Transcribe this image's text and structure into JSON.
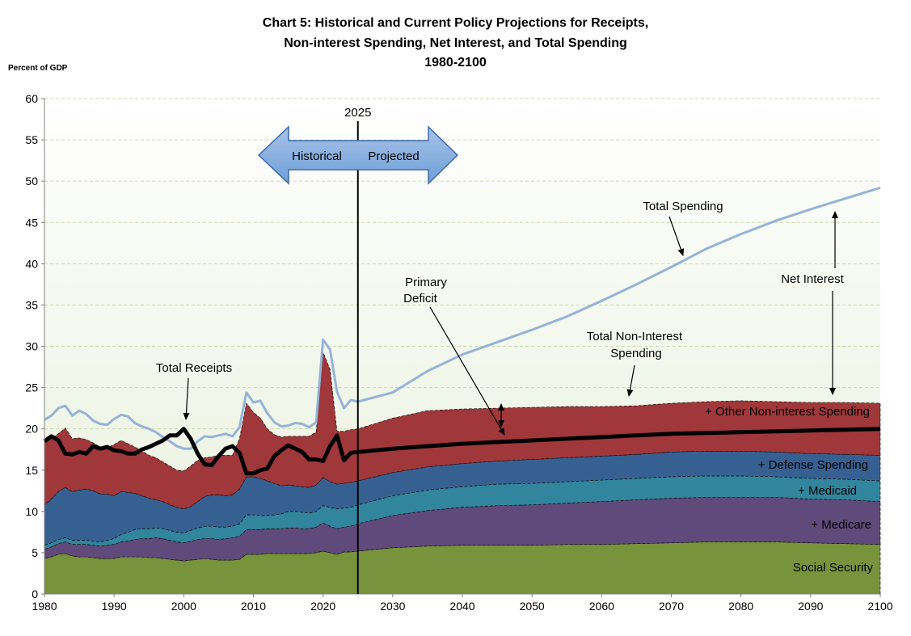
{
  "chart_data": {
    "type": "area",
    "title_lines": [
      "Chart 5:  Historical and Current Policy Projections for Receipts,",
      "Non-interest Spending, Net Interest, and Total Spending",
      "1980-2100"
    ],
    "ylabel": "Percent of GDP",
    "xlabel": "",
    "xlim": [
      1980,
      2100
    ],
    "ylim": [
      0,
      60
    ],
    "x_ticks": [
      1980,
      1990,
      2000,
      2010,
      2020,
      2030,
      2040,
      2050,
      2060,
      2070,
      2080,
      2090,
      2100
    ],
    "y_ticks": [
      0,
      5,
      10,
      15,
      20,
      25,
      30,
      35,
      40,
      45,
      50,
      55,
      60
    ],
    "grid": "horizontal-dashed",
    "divider_year": 2025,
    "divider_label": "2025",
    "arrow_labels": {
      "left": "Historical",
      "right": "Projected"
    },
    "x": [
      1980,
      1981,
      1982,
      1983,
      1984,
      1985,
      1986,
      1987,
      1988,
      1989,
      1990,
      1991,
      1992,
      1993,
      1994,
      1995,
      1996,
      1997,
      1998,
      1999,
      2000,
      2001,
      2002,
      2003,
      2004,
      2005,
      2006,
      2007,
      2008,
      2009,
      2010,
      2011,
      2012,
      2013,
      2014,
      2015,
      2016,
      2017,
      2018,
      2019,
      2020,
      2021,
      2022,
      2023,
      2024,
      2025,
      2030,
      2035,
      2040,
      2045,
      2050,
      2055,
      2060,
      2065,
      2070,
      2075,
      2080,
      2085,
      2090,
      2095,
      2100
    ],
    "stacked_series": [
      {
        "name": "Social Security",
        "color": "#77933C",
        "values": [
          4.3,
          4.5,
          4.8,
          4.9,
          4.6,
          4.5,
          4.5,
          4.4,
          4.3,
          4.3,
          4.3,
          4.5,
          4.5,
          4.5,
          4.5,
          4.4,
          4.4,
          4.3,
          4.2,
          4.1,
          4.0,
          4.1,
          4.2,
          4.3,
          4.2,
          4.1,
          4.1,
          4.1,
          4.2,
          4.8,
          4.8,
          4.8,
          4.9,
          4.9,
          4.9,
          4.9,
          4.9,
          4.9,
          4.9,
          5.0,
          5.2,
          5.0,
          4.8,
          5.1,
          5.1,
          5.2,
          5.6,
          5.8,
          5.9,
          5.9,
          5.9,
          6.0,
          6.0,
          6.1,
          6.2,
          6.3,
          6.3,
          6.3,
          6.2,
          6.1,
          6.0
        ]
      },
      {
        "name": "+  Medicare",
        "color": "#604A7B",
        "values": [
          1.1,
          1.2,
          1.3,
          1.4,
          1.4,
          1.5,
          1.5,
          1.5,
          1.5,
          1.6,
          1.7,
          1.8,
          1.9,
          2.1,
          2.2,
          2.3,
          2.4,
          2.4,
          2.3,
          2.2,
          2.2,
          2.3,
          2.4,
          2.4,
          2.5,
          2.5,
          2.6,
          2.7,
          2.8,
          3.0,
          3.0,
          3.0,
          3.0,
          3.0,
          3.0,
          3.1,
          3.1,
          3.0,
          3.0,
          3.1,
          3.4,
          3.2,
          3.1,
          3.0,
          3.1,
          3.3,
          3.9,
          4.3,
          4.6,
          4.8,
          4.9,
          5.0,
          5.2,
          5.3,
          5.4,
          5.4,
          5.4,
          5.4,
          5.3,
          5.3,
          5.2
        ]
      },
      {
        "name": "+ Medicaid",
        "color": "#31859C",
        "values": [
          0.5,
          0.5,
          0.5,
          0.5,
          0.5,
          0.5,
          0.5,
          0.5,
          0.5,
          0.6,
          0.7,
          0.9,
          1.1,
          1.2,
          1.2,
          1.2,
          1.2,
          1.2,
          1.2,
          1.2,
          1.2,
          1.3,
          1.4,
          1.5,
          1.5,
          1.5,
          1.4,
          1.4,
          1.5,
          1.8,
          1.8,
          1.7,
          1.6,
          1.7,
          1.8,
          2.0,
          2.0,
          2.0,
          1.9,
          1.9,
          2.1,
          2.3,
          2.4,
          2.3,
          2.3,
          2.3,
          2.4,
          2.5,
          2.5,
          2.6,
          2.6,
          2.6,
          2.6,
          2.6,
          2.6,
          2.6,
          2.6,
          2.5,
          2.5,
          2.5,
          2.5
        ]
      },
      {
        "name": "+ Defense Spending",
        "color": "#376092",
        "values": [
          4.9,
          5.3,
          5.8,
          6.1,
          5.9,
          6.1,
          6.2,
          6.1,
          5.8,
          5.6,
          5.2,
          5.2,
          4.8,
          4.4,
          4.0,
          3.7,
          3.4,
          3.3,
          3.1,
          3.0,
          2.9,
          2.9,
          3.2,
          3.6,
          3.8,
          3.9,
          3.8,
          3.8,
          4.2,
          4.6,
          4.6,
          4.5,
          4.2,
          3.8,
          3.4,
          3.2,
          3.1,
          3.1,
          3.1,
          3.2,
          3.4,
          3.1,
          3.0,
          3.0,
          3.0,
          2.9,
          2.8,
          2.8,
          2.8,
          2.8,
          2.9,
          2.9,
          2.9,
          2.9,
          3.0,
          3.0,
          3.0,
          3.0,
          3.0,
          3.0,
          3.1
        ]
      },
      {
        "name": "+ Other Non-interest Spending",
        "color": "#A0373A",
        "values": [
          7.6,
          7.3,
          7.0,
          7.2,
          6.4,
          6.3,
          6.0,
          5.8,
          5.7,
          5.6,
          6.2,
          6.2,
          5.9,
          5.6,
          5.4,
          5.2,
          5.1,
          4.8,
          4.7,
          4.5,
          4.6,
          4.9,
          5.0,
          4.7,
          4.6,
          4.8,
          4.9,
          4.8,
          6.1,
          8.9,
          7.8,
          7.3,
          6.3,
          5.9,
          5.9,
          5.9,
          6.0,
          6.1,
          6.2,
          6.4,
          15.2,
          13.6,
          6.4,
          6.3,
          6.4,
          6.3,
          6.6,
          6.8,
          6.6,
          6.4,
          6.3,
          6.2,
          6.0,
          5.9,
          5.9,
          6.0,
          6.1,
          6.1,
          6.2,
          6.3,
          6.3
        ]
      }
    ],
    "line_series": [
      {
        "name": "Total Spending",
        "color": "#95B3D7",
        "values": [
          21.1,
          21.6,
          22.5,
          22.8,
          21.6,
          22.2,
          21.8,
          21.0,
          20.6,
          20.5,
          21.2,
          21.7,
          21.5,
          20.7,
          20.3,
          20.0,
          19.6,
          19.0,
          18.5,
          17.9,
          17.6,
          17.6,
          18.5,
          19.1,
          19.0,
          19.2,
          19.4,
          19.1,
          20.2,
          24.4,
          23.2,
          23.4,
          21.9,
          20.8,
          20.3,
          20.4,
          20.7,
          20.6,
          20.2,
          20.8,
          30.8,
          29.6,
          24.5,
          22.5,
          23.5,
          23.3,
          24.4,
          27.0,
          29.0,
          30.5,
          32.0,
          33.6,
          35.5,
          37.5,
          39.6,
          41.8,
          43.6,
          45.2,
          46.6,
          47.9,
          49.2
        ]
      },
      {
        "name": "Total Receipts",
        "color": "#000000",
        "values": [
          18.5,
          19.1,
          18.6,
          17.0,
          16.9,
          17.2,
          17.0,
          17.9,
          17.6,
          17.8,
          17.4,
          17.3,
          17.0,
          17.0,
          17.5,
          17.8,
          18.2,
          18.6,
          19.2,
          19.2,
          20.0,
          18.8,
          17.0,
          15.7,
          15.6,
          16.7,
          17.6,
          17.9,
          17.1,
          14.6,
          14.6,
          15.0,
          15.2,
          16.7,
          17.4,
          18.0,
          17.6,
          17.2,
          16.3,
          16.3,
          16.1,
          17.9,
          19.2,
          16.2,
          17.1,
          17.2,
          17.6,
          17.9,
          18.2,
          18.4,
          18.6,
          18.8,
          19.0,
          19.2,
          19.4,
          19.5,
          19.6,
          19.7,
          19.8,
          19.9,
          20.0
        ]
      }
    ],
    "annotations": {
      "total_spending": "Total Spending",
      "primary_deficit_line1": "Primary",
      "primary_deficit_line2": "Deficit",
      "total_noninterest_line1": "Total Non-Interest",
      "total_noninterest_line2": "Spending",
      "net_interest": "Net Interest",
      "total_receipts": "Total Receipts",
      "social_security": "Social Security",
      "medicare": "+  Medicare",
      "medicaid": "+ Medicaid",
      "defense": "+ Defense Spending",
      "other": "+ Other Non-interest Spending"
    }
  }
}
